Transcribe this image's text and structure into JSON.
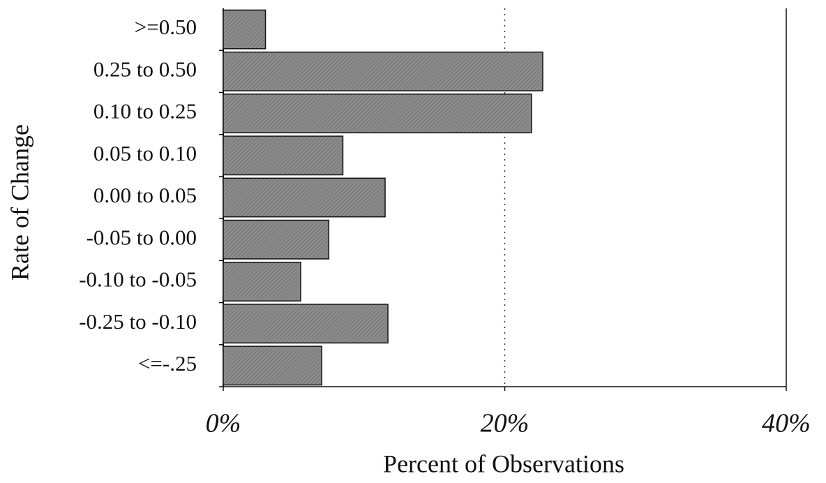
{
  "chart_data": {
    "type": "bar",
    "orientation": "horizontal",
    "x_label": "Percent of Observations",
    "y_label": "Rate of Change",
    "categories": [
      ">=0.50",
      "0.25 to 0.50",
      "0.10 to 0.25",
      "0.05 to 0.10",
      "0.00 to 0.05",
      "-0.05 to 0.00",
      "-0.10 to -0.05",
      "-0.25 to -0.10",
      "<=-.25"
    ],
    "values": [
      3.0,
      22.7,
      21.9,
      8.5,
      11.5,
      7.5,
      5.5,
      11.7,
      7.0
    ],
    "color": "#8c8c8c",
    "xlim": [
      0,
      40
    ],
    "xticks": [
      {
        "value": 0,
        "label": "0%"
      },
      {
        "value": 20,
        "label": "20%"
      },
      {
        "value": 40,
        "label": "40%"
      }
    ],
    "grid": true
  }
}
